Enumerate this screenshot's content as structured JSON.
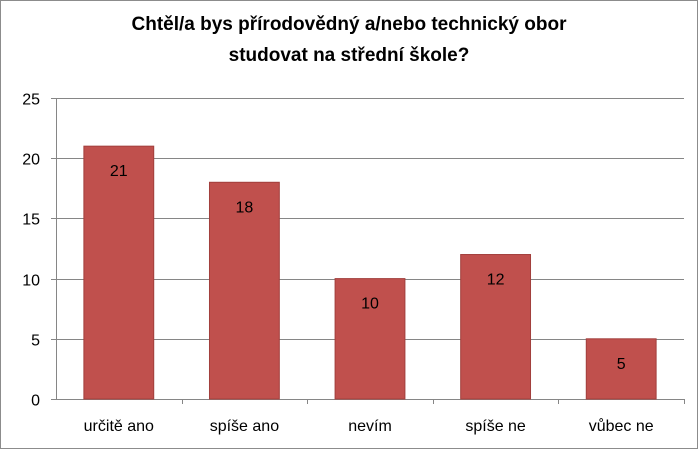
{
  "chart_data": {
    "type": "bar",
    "title_lines": [
      "Chtěl/a bys přírodovědný a/nebo technický obor",
      "studovat na střední škole?"
    ],
    "categories": [
      "určitě ano",
      "spíše ano",
      "nevím",
      "spíše ne",
      "vůbec ne"
    ],
    "values": [
      21,
      18,
      10,
      12,
      5
    ],
    "data_labels": [
      "21",
      "18",
      "10",
      "12",
      "5"
    ],
    "y_ticks": [
      "0",
      "5",
      "10",
      "15",
      "20",
      "25"
    ],
    "ylim": [
      0,
      25
    ],
    "grid": true,
    "legend": "none",
    "bar_color": "#c0504d",
    "bar_edge_color": "#a23f3c",
    "grid_color": "#868686"
  }
}
